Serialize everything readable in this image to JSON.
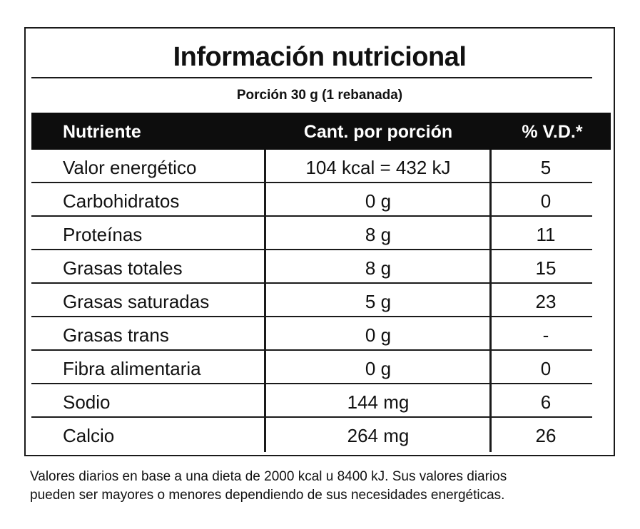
{
  "label": {
    "title": "Información nutricional",
    "portion": "Porción 30 g (1 rebanada)",
    "headers": {
      "nutrient": "Nutriente",
      "amount": "Cant. por porción",
      "vd": "% V.D.*"
    },
    "rows": [
      {
        "nutrient": "Valor energético",
        "amount": "104 kcal = 432 kJ",
        "vd": "5"
      },
      {
        "nutrient": "Carbohidratos",
        "amount": "0 g",
        "vd": "0"
      },
      {
        "nutrient": "Proteínas",
        "amount": "8 g",
        "vd": "11"
      },
      {
        "nutrient": "Grasas totales",
        "amount": "8 g",
        "vd": "15"
      },
      {
        "nutrient": "Grasas saturadas",
        "amount": "5 g",
        "vd": "23"
      },
      {
        "nutrient": "Grasas trans",
        "amount": "0 g",
        "vd": "-"
      },
      {
        "nutrient": "Fibra alimentaria",
        "amount": "0 g",
        "vd": "0"
      },
      {
        "nutrient": "Sodio",
        "amount": "144 mg",
        "vd": "6"
      },
      {
        "nutrient": "Calcio",
        "amount": "264 mg",
        "vd": "26"
      }
    ]
  },
  "footnote": {
    "line1": "Valores diarios en base a una dieta de 2000 kcal u 8400 kJ. Sus valores diarios",
    "line2": "pueden ser mayores o menores dependiendo de sus necesidades energéticas."
  },
  "colors": {
    "header_background": "#0d0d0d",
    "header_text": "#ffffff",
    "rules": "#1a1a1a",
    "text": "#111111"
  }
}
